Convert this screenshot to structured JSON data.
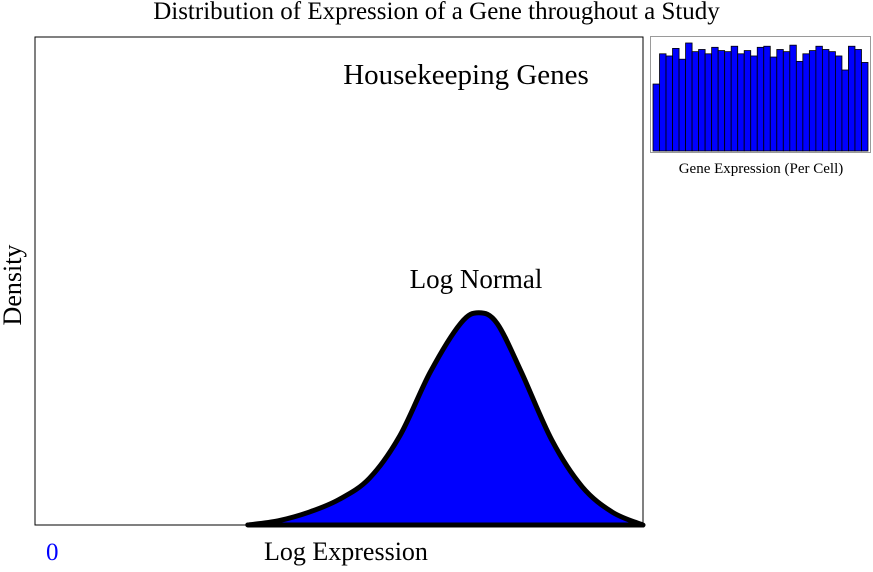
{
  "title": "Distribution of Expression of a Gene throughout a Study",
  "main_chart": {
    "panel_label": "Housekeeping Genes",
    "curve_label": "Log Normal",
    "xlabel": "Log Expression",
    "ylabel": "Density",
    "x_tick_zero": "0"
  },
  "inset": {
    "caption": "Gene Expression (Per Cell)"
  },
  "colors": {
    "fill": "#0000ff",
    "outline": "#000000",
    "zero_label": "#0000ff"
  },
  "chart_data": [
    {
      "type": "area",
      "title": "Distribution of Expression of a Gene throughout a Study",
      "xlabel": "Log Expression",
      "ylabel": "Density",
      "annotations": [
        "Housekeeping Genes",
        "Log Normal"
      ],
      "x": [
        3.5,
        4.0,
        4.5,
        5.0,
        5.5,
        6.0,
        6.5,
        7.0,
        7.3,
        7.6,
        8.0,
        8.5,
        9.0,
        9.5,
        10.0
      ],
      "y": [
        0.0,
        0.02,
        0.06,
        0.12,
        0.22,
        0.42,
        0.72,
        0.95,
        1.0,
        0.95,
        0.72,
        0.4,
        0.18,
        0.06,
        0.0
      ],
      "xlim": [
        0,
        10
      ],
      "ylim": [
        0,
        2.3
      ]
    },
    {
      "type": "bar",
      "xlabel": "Gene Expression (Per Cell)",
      "values": [
        0.62,
        0.9,
        0.88,
        0.95,
        0.85,
        1.0,
        0.92,
        0.94,
        0.9,
        0.96,
        0.93,
        0.92,
        0.97,
        0.9,
        0.93,
        0.88,
        0.96,
        0.97,
        0.87,
        0.94,
        0.92,
        0.98,
        0.83,
        0.9,
        0.93,
        0.97,
        0.94,
        0.92,
        0.88,
        0.75,
        0.97,
        0.94,
        0.82
      ],
      "ylim": [
        0,
        1.0
      ]
    }
  ]
}
